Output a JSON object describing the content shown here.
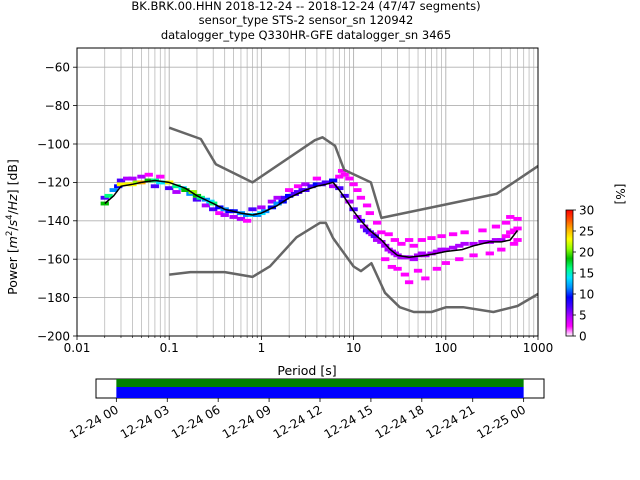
{
  "chart_data": {
    "type": "heatmap",
    "title_lines": [
      "BK.BRK.00.HHN   2018-12-24 -- 2018-12-24  (47/47 segments)",
      "sensor_type STS-2 sensor_sn 120942",
      "datalogger_type Q330HR-GFE datalogger_sn 3465"
    ],
    "xlabel": "Period [s]",
    "ylabel_parts": [
      "Power [",
      "m",
      "2",
      "/",
      "s",
      "4",
      "/",
      "Hz",
      "] [dB]"
    ],
    "x_scale": "log",
    "xlim": [
      0.01,
      1000
    ],
    "ylim": [
      -200,
      -50
    ],
    "x_ticks": [
      {
        "value": 0.01,
        "label": "0.01"
      },
      {
        "value": 0.1,
        "label": "0.1"
      },
      {
        "value": 1,
        "label": "1"
      },
      {
        "value": 10,
        "label": "10"
      },
      {
        "value": 100,
        "label": "100"
      },
      {
        "value": 1000,
        "label": "1000"
      }
    ],
    "y_ticks": [
      {
        "value": -60,
        "label": "−60"
      },
      {
        "value": -80,
        "label": "−80"
      },
      {
        "value": -100,
        "label": "−100"
      },
      {
        "value": -120,
        "label": "−120"
      },
      {
        "value": -140,
        "label": "−140"
      },
      {
        "value": -160,
        "label": "−160"
      },
      {
        "value": -180,
        "label": "−180"
      },
      {
        "value": -200,
        "label": "−200"
      }
    ],
    "noise_model_high": {
      "name": "NHNM",
      "period": [
        0.1,
        0.22,
        0.32,
        0.8,
        3.8,
        4.6,
        6.3,
        7.9,
        15.4,
        20,
        354.8,
        1000
      ],
      "power": [
        -91.5,
        -97.4,
        -110.5,
        -120.0,
        -98.0,
        -96.5,
        -101.0,
        -113.5,
        -120.0,
        -138.5,
        -126.0,
        -111.5
      ]
    },
    "noise_model_low": {
      "name": "NLNM",
      "period": [
        0.1,
        0.17,
        0.4,
        0.8,
        1.24,
        2.4,
        4.3,
        5.0,
        6.0,
        10.0,
        12.0,
        15.6,
        21.9,
        31.6,
        45.0,
        70.0,
        101.0,
        154.0,
        328.0,
        600.0,
        1000.0
      ],
      "power": [
        -168.0,
        -166.7,
        -166.7,
        -169.2,
        -163.7,
        -148.6,
        -141.1,
        -141.1,
        -149.0,
        -163.8,
        -166.2,
        -162.1,
        -177.5,
        -185.0,
        -187.5,
        -187.5,
        -185.0,
        -185.0,
        -187.5,
        -184.4,
        -178.1
      ]
    },
    "mode_curve": {
      "name": "mode",
      "period": [
        0.02,
        0.025,
        0.03,
        0.04,
        0.05,
        0.07,
        0.1,
        0.15,
        0.2,
        0.3,
        0.4,
        0.6,
        0.8,
        1.0,
        1.5,
        2.0,
        3.0,
        4.0,
        5.0,
        6.0,
        7.0,
        8.0,
        10.0,
        12.0,
        15.0,
        20.0,
        25.0,
        30.0,
        40.0,
        60.0,
        80.0,
        100.0,
        150.0,
        200.0,
        300.0,
        400.0,
        500.0,
        600.0
      ],
      "power": [
        -131,
        -127,
        -122,
        -121,
        -120,
        -119,
        -120,
        -123,
        -127,
        -131,
        -134,
        -136,
        -137,
        -136,
        -132,
        -128,
        -124,
        -122,
        -121,
        -120,
        -124,
        -128,
        -135,
        -140,
        -145,
        -150,
        -155,
        -158,
        -159,
        -158,
        -157,
        -156,
        -155,
        -153,
        -151,
        -151,
        -150,
        -145
      ]
    },
    "colorbar": {
      "label": "[%]",
      "range": [
        0,
        30
      ],
      "ticks": [
        0,
        5,
        10,
        15,
        20,
        25,
        30
      ],
      "colormap": [
        "#ffffff",
        "#ff00ff",
        "#b000ff",
        "#4a00ff",
        "#0000ff",
        "#0090ff",
        "#00e5ff",
        "#00ff80",
        "#00c000",
        "#90ff00",
        "#ffff00",
        "#ffb000",
        "#ff5000",
        "#ff0000"
      ]
    },
    "histogram_samples": [
      [
        0.02,
        -131,
        18
      ],
      [
        0.02,
        -128,
        6
      ],
      [
        0.022,
        -127,
        15
      ],
      [
        0.025,
        -124,
        12
      ],
      [
        0.028,
        -122,
        10
      ],
      [
        0.03,
        -121,
        24
      ],
      [
        0.03,
        -119,
        6
      ],
      [
        0.035,
        -121,
        22
      ],
      [
        0.035,
        -118,
        5
      ],
      [
        0.04,
        -121,
        22
      ],
      [
        0.04,
        -118,
        4
      ],
      [
        0.045,
        -120,
        20
      ],
      [
        0.05,
        -120,
        26
      ],
      [
        0.05,
        -117,
        5
      ],
      [
        0.06,
        -119,
        18
      ],
      [
        0.06,
        -116,
        3
      ],
      [
        0.07,
        -119,
        16
      ],
      [
        0.07,
        -122,
        8
      ],
      [
        0.08,
        -120,
        14
      ],
      [
        0.08,
        -117,
        3
      ],
      [
        0.09,
        -120,
        14
      ],
      [
        0.1,
        -120,
        22
      ],
      [
        0.1,
        -123,
        6
      ],
      [
        0.12,
        -122,
        16
      ],
      [
        0.12,
        -125,
        4
      ],
      [
        0.14,
        -123,
        14
      ],
      [
        0.15,
        -124,
        18
      ],
      [
        0.17,
        -126,
        12
      ],
      [
        0.18,
        -125,
        20
      ],
      [
        0.2,
        -127,
        18
      ],
      [
        0.2,
        -129,
        6
      ],
      [
        0.22,
        -128,
        16
      ],
      [
        0.25,
        -129,
        12
      ],
      [
        0.25,
        -132,
        4
      ],
      [
        0.28,
        -130,
        14
      ],
      [
        0.3,
        -131,
        16
      ],
      [
        0.3,
        -134,
        6
      ],
      [
        0.35,
        -133,
        10
      ],
      [
        0.35,
        -136,
        3
      ],
      [
        0.4,
        -134,
        12
      ],
      [
        0.4,
        -137,
        5
      ],
      [
        0.45,
        -135,
        10
      ],
      [
        0.5,
        -135,
        10
      ],
      [
        0.5,
        -138,
        4
      ],
      [
        0.6,
        -136,
        12
      ],
      [
        0.6,
        -139,
        4
      ],
      [
        0.7,
        -137,
        12
      ],
      [
        0.7,
        -140,
        3
      ],
      [
        0.8,
        -137,
        14
      ],
      [
        0.8,
        -134,
        6
      ],
      [
        0.9,
        -137,
        12
      ],
      [
        1.0,
        -136,
        14
      ],
      [
        1.0,
        -133,
        5
      ],
      [
        1.1,
        -135,
        12
      ],
      [
        1.3,
        -133,
        10
      ],
      [
        1.3,
        -130,
        5
      ],
      [
        1.5,
        -131,
        12
      ],
      [
        1.5,
        -128,
        4
      ],
      [
        1.7,
        -130,
        10
      ],
      [
        1.8,
        -128,
        6
      ],
      [
        2.0,
        -127,
        10
      ],
      [
        2.0,
        -124,
        3
      ],
      [
        2.3,
        -126,
        8
      ],
      [
        2.5,
        -125,
        8
      ],
      [
        2.5,
        -122,
        3
      ],
      [
        2.8,
        -124,
        8
      ],
      [
        3.0,
        -124,
        8
      ],
      [
        3.0,
        -121,
        4
      ],
      [
        3.5,
        -122,
        8
      ],
      [
        4.0,
        -121,
        10
      ],
      [
        4.0,
        -118,
        3
      ],
      [
        4.5,
        -121,
        6
      ],
      [
        5.0,
        -120,
        8
      ],
      [
        6.0,
        -119,
        10
      ],
      [
        6.0,
        -122,
        4
      ],
      [
        7.0,
        -117,
        3
      ],
      [
        7.0,
        -123,
        6
      ],
      [
        7.5,
        -114,
        2
      ],
      [
        8.0,
        -127,
        6
      ],
      [
        8.0,
        -116,
        2
      ],
      [
        9.0,
        -130,
        4
      ],
      [
        9.0,
        -118,
        2
      ],
      [
        10,
        -134,
        6
      ],
      [
        10,
        -121,
        2
      ],
      [
        11,
        -138,
        5
      ],
      [
        11,
        -124,
        2
      ],
      [
        12,
        -140,
        6
      ],
      [
        12,
        -128,
        2
      ],
      [
        13,
        -143,
        5
      ],
      [
        14,
        -145,
        6
      ],
      [
        14,
        -132,
        2
      ],
      [
        15,
        -146,
        6
      ],
      [
        15,
        -136,
        2
      ],
      [
        16,
        -147,
        5
      ],
      [
        17,
        -148,
        6
      ],
      [
        18,
        -150,
        5
      ],
      [
        18,
        -141,
        2
      ],
      [
        20,
        -151,
        5
      ],
      [
        20,
        -146,
        2
      ],
      [
        22,
        -153,
        5
      ],
      [
        22,
        -160,
        2
      ],
      [
        24,
        -155,
        4
      ],
      [
        24,
        -147,
        2
      ],
      [
        26,
        -156,
        4
      ],
      [
        26,
        -164,
        2
      ],
      [
        28,
        -157,
        5
      ],
      [
        28,
        -150,
        2
      ],
      [
        30,
        -158,
        5
      ],
      [
        30,
        -165,
        2
      ],
      [
        33,
        -159,
        5
      ],
      [
        33,
        -152,
        2
      ],
      [
        36,
        -159,
        4
      ],
      [
        36,
        -168,
        2
      ],
      [
        40,
        -159,
        4
      ],
      [
        40,
        -150,
        2
      ],
      [
        40,
        -172,
        2
      ],
      [
        45,
        -160,
        4
      ],
      [
        45,
        -153,
        2
      ],
      [
        50,
        -158,
        4
      ],
      [
        50,
        -166,
        2
      ],
      [
        55,
        -157,
        4
      ],
      [
        55,
        -150,
        2
      ],
      [
        60,
        -158,
        4
      ],
      [
        60,
        -170,
        2
      ],
      [
        70,
        -157,
        4
      ],
      [
        70,
        -149,
        2
      ],
      [
        80,
        -156,
        4
      ],
      [
        80,
        -165,
        2
      ],
      [
        90,
        -155,
        4
      ],
      [
        90,
        -148,
        2
      ],
      [
        100,
        -155,
        4
      ],
      [
        100,
        -162,
        2
      ],
      [
        120,
        -154,
        4
      ],
      [
        120,
        -147,
        2
      ],
      [
        140,
        -153,
        4
      ],
      [
        140,
        -160,
        2
      ],
      [
        160,
        -152,
        4
      ],
      [
        160,
        -146,
        2
      ],
      [
        200,
        -152,
        4
      ],
      [
        200,
        -158,
        2
      ],
      [
        250,
        -151,
        4
      ],
      [
        250,
        -145,
        2
      ],
      [
        300,
        -151,
        4
      ],
      [
        300,
        -157,
        2
      ],
      [
        350,
        -150,
        4
      ],
      [
        350,
        -143,
        2
      ],
      [
        400,
        -150,
        4
      ],
      [
        400,
        -155,
        2
      ],
      [
        450,
        -148,
        3
      ],
      [
        450,
        -141,
        2
      ],
      [
        500,
        -146,
        3
      ],
      [
        500,
        -138,
        2
      ],
      [
        550,
        -145,
        3
      ],
      [
        550,
        -152,
        2
      ],
      [
        600,
        -144,
        3
      ],
      [
        600,
        -139,
        2
      ],
      [
        600,
        -150,
        2
      ]
    ],
    "segment_timeline": {
      "tick_labels": [
        "12-24 00",
        "12-24 03",
        "12-24 06",
        "12-24 09",
        "12-24 12",
        "12-24 15",
        "12-24 18",
        "12-24 21",
        "12-25 00"
      ],
      "tick_hours": [
        0,
        3,
        6,
        9,
        12,
        15,
        18,
        21,
        24
      ],
      "range_hours": [
        -1.2,
        25.2
      ],
      "coverage_hours": [
        0,
        24
      ],
      "bar_colors": {
        "used": "#008000",
        "available": "#0000ff"
      }
    }
  }
}
